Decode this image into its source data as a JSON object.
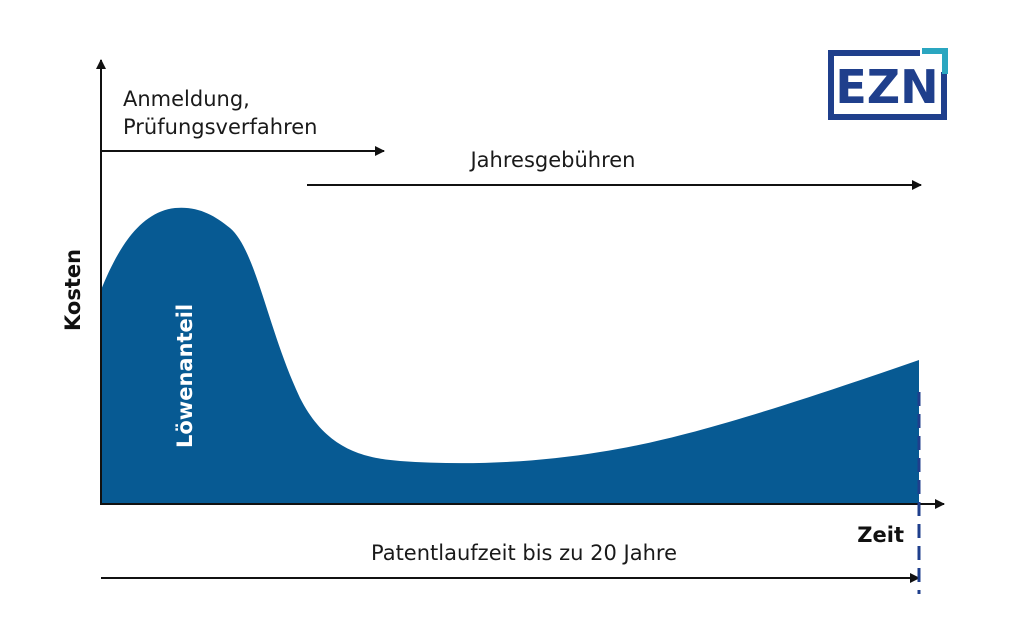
{
  "diagram": {
    "y_axis_label": "Kosten",
    "x_axis_label": "Zeit",
    "area_label": "Löwenanteil",
    "phase_1_label_line1": "Anmeldung,",
    "phase_1_label_line2": "Prüfungsverfahren",
    "phase_2_label": "Jahresgebühren",
    "term_label": "Patentlaufzeit bis zu 20 Jahre"
  },
  "logo": {
    "text": "EZN",
    "primary_color": "#1f3f8c",
    "accent_color": "#2aa6c0"
  },
  "colors": {
    "area_fill": "#075a93",
    "axis": "#111111",
    "dashed_marker": "#1f3f8c"
  }
}
